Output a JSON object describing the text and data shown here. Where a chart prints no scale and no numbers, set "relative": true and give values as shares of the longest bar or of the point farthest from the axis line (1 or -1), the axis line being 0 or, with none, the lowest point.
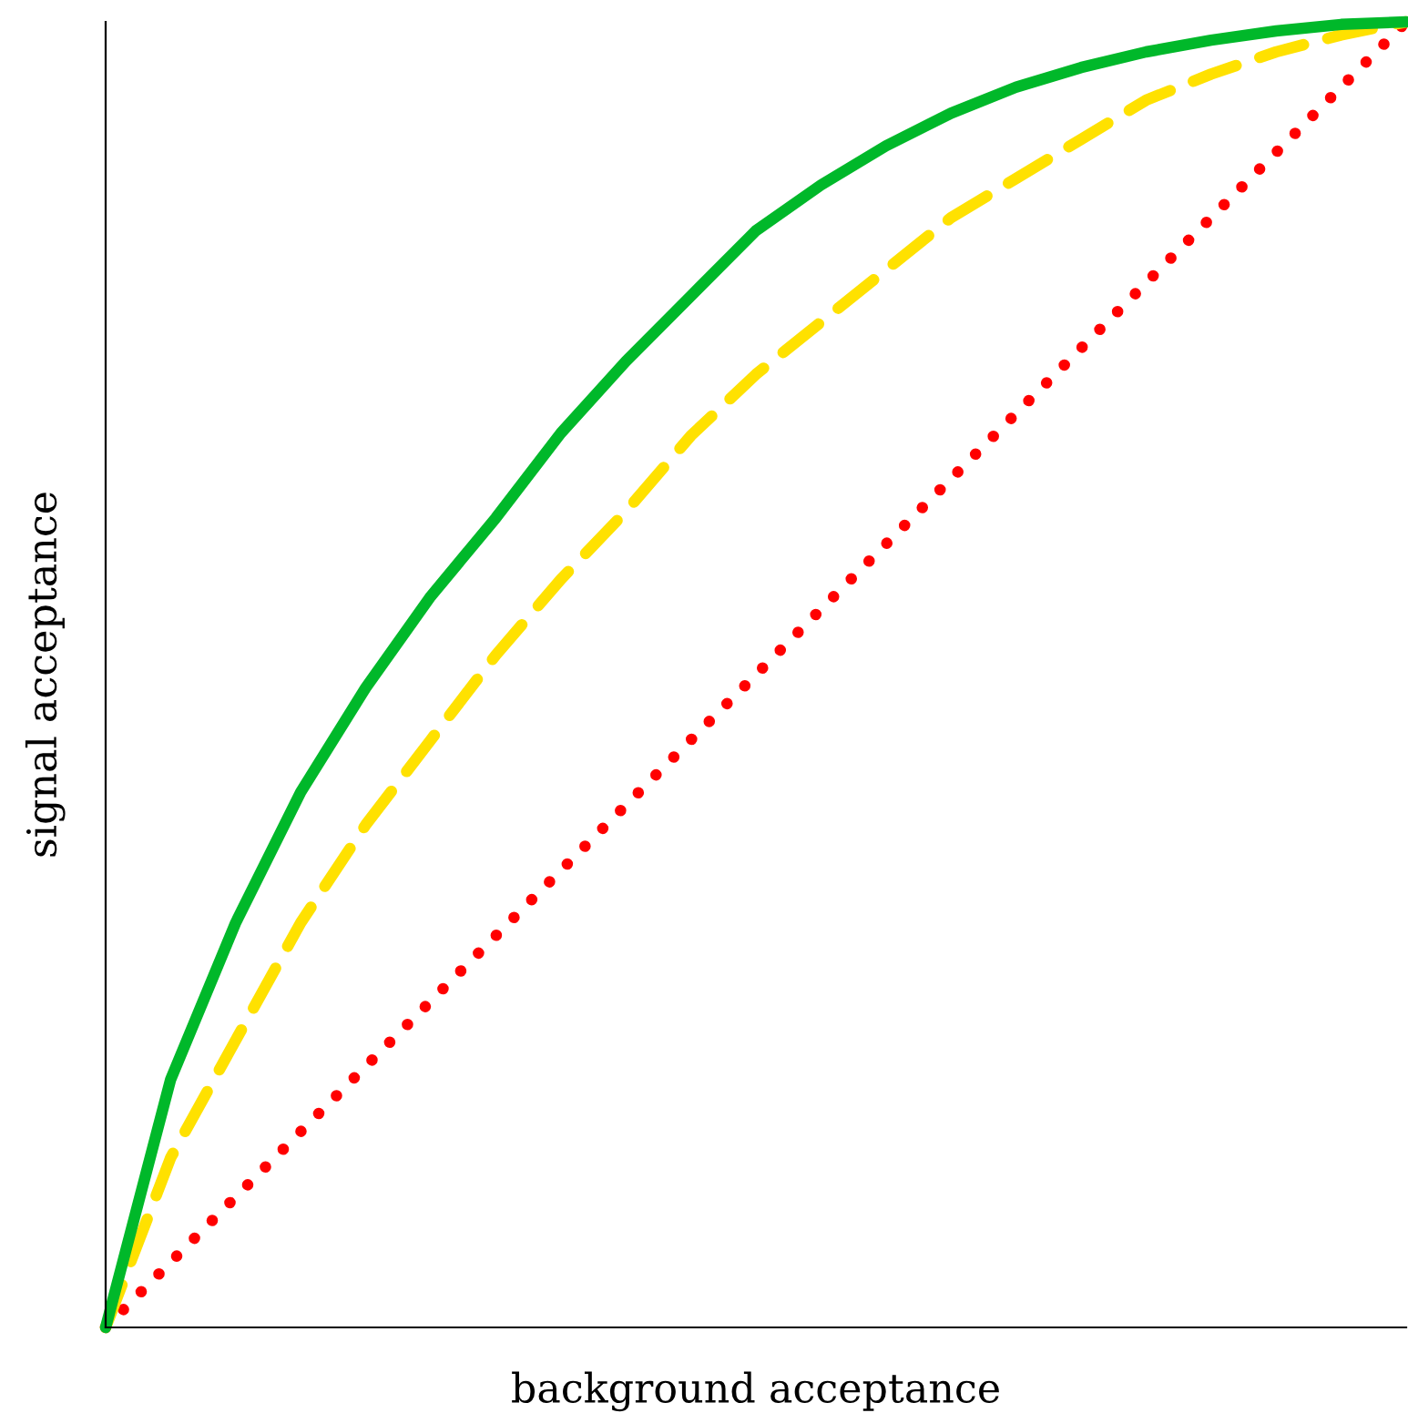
{
  "chart_data": {
    "type": "line",
    "relative": true,
    "xlabel": "background acceptance",
    "ylabel": "signal acceptance",
    "categories": [
      null,
      null,
      null,
      null,
      null,
      null,
      null,
      null,
      null,
      null,
      null,
      null,
      null,
      null,
      null,
      null,
      null,
      null,
      null,
      null,
      null
    ],
    "series": [
      {
        "color": "#ff0000",
        "line_style": "dotted",
        "values": [
          0,
          0.05,
          0.1,
          0.15,
          0.2,
          0.25,
          0.3,
          0.35,
          0.4,
          0.45,
          0.5,
          0.55,
          0.6,
          0.65,
          0.7,
          0.75,
          0.8,
          0.85,
          0.9,
          0.95,
          1
        ]
      },
      {
        "color": "#ffe100",
        "line_style": "dashed",
        "values": [
          0,
          0.13,
          0.22,
          0.31,
          0.385,
          0.45,
          0.515,
          0.573,
          0.625,
          0.683,
          0.73,
          0.77,
          0.81,
          0.85,
          0.88,
          0.91,
          0.94,
          0.96,
          0.977,
          0.99,
          1
        ]
      },
      {
        "color": "#00b82a",
        "line_style": "solid",
        "values": [
          0,
          0.19,
          0.31,
          0.41,
          0.49,
          0.56,
          0.62,
          0.685,
          0.74,
          0.79,
          0.84,
          0.875,
          0.905,
          0.93,
          0.95,
          0.965,
          0.977,
          0.986,
          0.993,
          0.998,
          1
        ]
      }
    ],
    "grid": false,
    "legend": false,
    "marker": "none"
  }
}
